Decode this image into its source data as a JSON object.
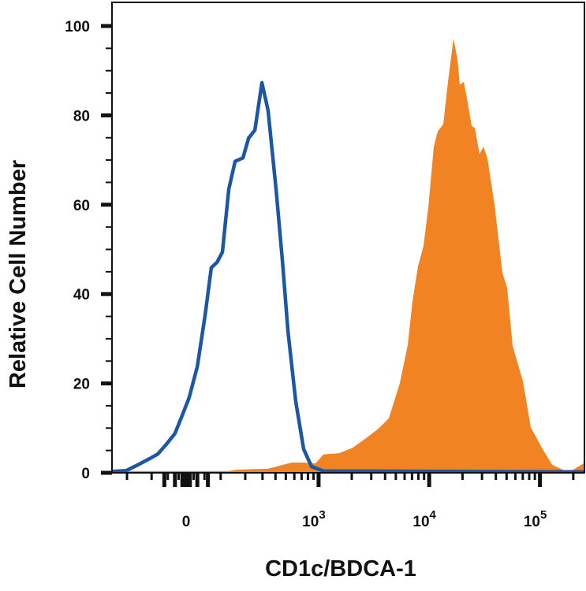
{
  "chart_data": {
    "type": "area",
    "title": "",
    "xlabel": "CD1c/BDCA-1",
    "ylabel": "Relative Cell Number",
    "x_scale": "biexponential",
    "xlim": [
      -286,
      251000
    ],
    "ylim": [
      0,
      100
    ],
    "grid": false,
    "x_ticks": [
      {
        "value": 0,
        "base": "0",
        "exp": ""
      },
      {
        "value": 1000,
        "base": "10",
        "exp": "3"
      },
      {
        "value": 10000,
        "base": "10",
        "exp": "4"
      },
      {
        "value": 100000,
        "base": "10",
        "exp": "5"
      }
    ],
    "y_ticks": [
      "0",
      "20",
      "40",
      "60",
      "80",
      "100"
    ],
    "y_tick_values": [
      0,
      20,
      40,
      60,
      80,
      100
    ],
    "series": [
      {
        "style": "filled",
        "color": "#F28323",
        "x": [
          -286,
          129,
          161,
          340,
          440,
          568,
          731,
          938,
          1105,
          1536,
          2035,
          2643,
          3494,
          4327,
          5440,
          6413,
          7066,
          7936,
          8896,
          9818,
          11008,
          11955,
          13402,
          14797,
          16589,
          17997,
          18918,
          20518,
          22272,
          24179,
          25818,
          28480,
          30912,
          33549,
          38912,
          45824,
          50560,
          56704,
          70144,
          82688,
          103936,
          128768,
          169984,
          200320,
          247040
        ],
        "y": [
          0.4,
          0.4,
          0.7,
          0.9,
          1.6,
          2.3,
          2.3,
          2.1,
          4.1,
          4.4,
          5.6,
          7.6,
          9.9,
          12.2,
          20.1,
          28.6,
          38.4,
          46.2,
          50.8,
          59.3,
          73.0,
          76.4,
          78.0,
          87.5,
          97.2,
          92.6,
          86.8,
          87.5,
          82.9,
          77.6,
          77.2,
          71.4,
          73.0,
          70.4,
          60.0,
          44.8,
          41.4,
          28.4,
          20.5,
          10.2,
          5.6,
          1.8,
          0.4,
          0.7,
          2.1
        ]
      },
      {
        "style": "line",
        "color": "#1B57A6",
        "x": [
          -286,
          -204,
          -150,
          -106,
          -80,
          -56,
          -30,
          -13,
          8,
          30,
          52,
          70,
          88,
          106,
          129,
          154,
          189,
          217,
          252,
          296,
          340,
          405,
          464,
          524,
          618,
          731,
          863,
          1105,
          251500
        ],
        "y": [
          0.3,
          0.5,
          1.8,
          3.2,
          4.2,
          6.2,
          8.8,
          12.3,
          16.8,
          23.8,
          35.3,
          45.9,
          47.1,
          49.4,
          63.5,
          69.7,
          70.5,
          74.9,
          76.7,
          87.3,
          81.1,
          63.5,
          47.6,
          31.7,
          15.9,
          5.3,
          1.4,
          0.4,
          0.2
        ]
      }
    ]
  }
}
